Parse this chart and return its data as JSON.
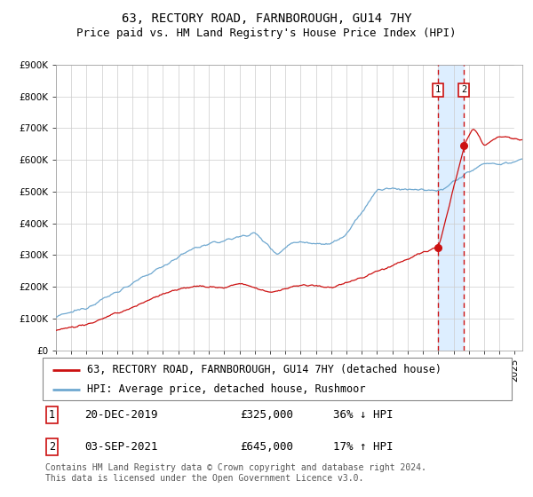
{
  "title": "63, RECTORY ROAD, FARNBOROUGH, GU14 7HY",
  "subtitle": "Price paid vs. HM Land Registry's House Price Index (HPI)",
  "ylim": [
    0,
    900000
  ],
  "yticks": [
    0,
    100000,
    200000,
    300000,
    400000,
    500000,
    600000,
    700000,
    800000,
    900000
  ],
  "ytick_labels": [
    "£0",
    "£100K",
    "£200K",
    "£300K",
    "£400K",
    "£500K",
    "£600K",
    "£700K",
    "£800K",
    "£900K"
  ],
  "xlim_start": 1995.0,
  "xlim_end": 2025.5,
  "hpi_color": "#6fa8d0",
  "price_color": "#cc1111",
  "background_color": "#ffffff",
  "grid_color": "#cccccc",
  "highlight_color": "#ddeeff",
  "sale1_date": 2019.97,
  "sale1_price": 325000,
  "sale1_label": "20-DEC-2019",
  "sale1_price_label": "£325,000",
  "sale1_hpi_label": "36% ↓ HPI",
  "sale2_date": 2021.67,
  "sale2_price": 645000,
  "sale2_label": "03-SEP-2021",
  "sale2_price_label": "£645,000",
  "sale2_hpi_label": "17% ↑ HPI",
  "legend_line1": "63, RECTORY ROAD, FARNBOROUGH, GU14 7HY (detached house)",
  "legend_line2": "HPI: Average price, detached house, Rushmoor",
  "footnote": "Contains HM Land Registry data © Crown copyright and database right 2024.\nThis data is licensed under the Open Government Licence v3.0.",
  "title_fontsize": 10,
  "subtitle_fontsize": 9,
  "tick_fontsize": 7.5,
  "legend_fontsize": 8.5,
  "annotation_fontsize": 9,
  "footnote_fontsize": 7
}
